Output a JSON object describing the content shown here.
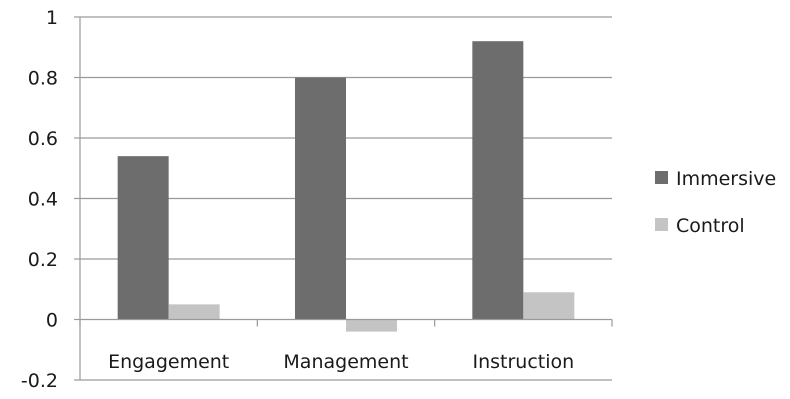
{
  "chart_data": {
    "type": "bar",
    "title": "",
    "xlabel": "",
    "ylabel": "",
    "categories": [
      "Engagement",
      "Management",
      "Instruction"
    ],
    "series": [
      {
        "name": "Immersive",
        "color": "#6d6d6d",
        "values": [
          0.54,
          0.8,
          0.92
        ]
      },
      {
        "name": "Control",
        "color": "#c4c4c4",
        "values": [
          0.05,
          -0.04,
          0.09
        ]
      }
    ],
    "ylim": [
      -0.2,
      1
    ],
    "yticks": [
      -0.2,
      0,
      0.2,
      0.4,
      0.6,
      0.8,
      1
    ],
    "ytick_labels": [
      "-0.2",
      "0",
      "0.2",
      "0.4",
      "0.6",
      "0.8",
      "1"
    ],
    "grid": true,
    "legend_position": "right"
  }
}
